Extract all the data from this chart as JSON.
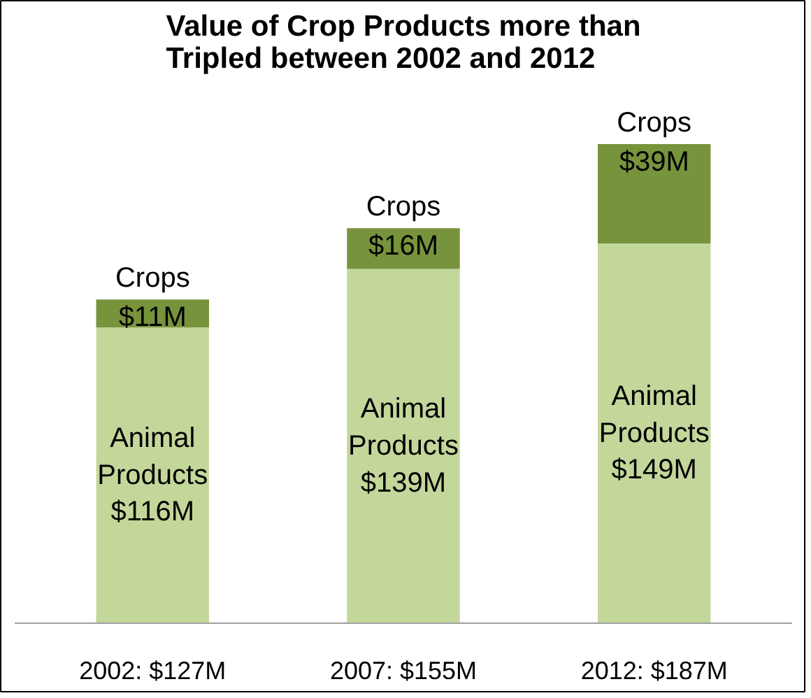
{
  "chart_data": {
    "type": "bar",
    "stacked": true,
    "title": "Value of Crop Products more than\nTripled between 2002 and 2012",
    "categories": [
      "2002: $127M",
      "2007: $155M",
      "2012: $187M"
    ],
    "series": [
      {
        "name": "Animal Products",
        "color": "#c4d79b",
        "values": [
          116,
          139,
          149
        ],
        "value_labels": [
          "$116M",
          "$139M",
          "$149M"
        ]
      },
      {
        "name": "Crops",
        "color": "#77933c",
        "values": [
          11,
          16,
          39
        ],
        "value_labels": [
          "$11M",
          "$16M",
          "$39M"
        ]
      }
    ],
    "grid": false,
    "tick_labels": "x"
  }
}
